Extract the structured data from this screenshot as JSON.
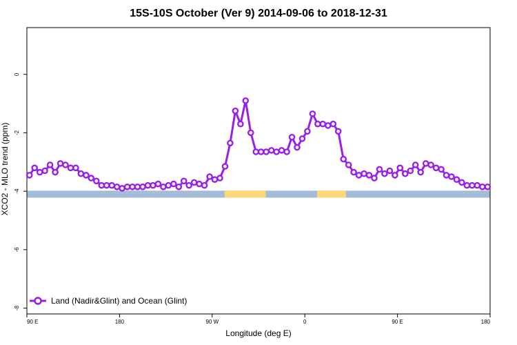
{
  "chart_data": {
    "type": "line",
    "title": "15S-10S October (Ver 9)   2014-09-06 to 2018-12-31",
    "xlabel": "Longitude (deg E)",
    "ylabel": "XCO2 - MLO trend (ppm)",
    "x_ticks": [
      {
        "value": 90,
        "label": "90 E"
      },
      {
        "value": 180,
        "label": "180"
      },
      {
        "value": 270,
        "label": "90 W"
      },
      {
        "value": 360,
        "label": "0"
      },
      {
        "value": 450,
        "label": "90 E"
      },
      {
        "value": 540,
        "label": "180"
      }
    ],
    "y_ticks": [
      0,
      -2,
      -4,
      -6,
      -8
    ],
    "xlim": [
      90,
      540
    ],
    "ylim": [
      -8.2,
      1.6
    ],
    "grid": false,
    "legend_position": "bottom-left",
    "series": [
      {
        "name": "Land (Nadir&Glint) and Ocean (Glint)",
        "color": "#9a1ee6",
        "x": [
          92.5,
          97.5,
          102.5,
          107.5,
          112.5,
          117.5,
          122.5,
          127.5,
          132.5,
          137.5,
          142.5,
          147.5,
          152.5,
          157.5,
          162.5,
          167.5,
          172.5,
          177.5,
          182.5,
          187.5,
          192.5,
          197.5,
          202.5,
          207.5,
          212.5,
          217.5,
          222.5,
          227.5,
          232.5,
          237.5,
          242.5,
          247.5,
          252.5,
          257.5,
          262.5,
          267.5,
          272.5,
          277.5,
          282.5,
          287.5,
          292.5,
          297.5,
          302.5,
          307.5,
          312.5,
          317.5,
          322.5,
          327.5,
          332.5,
          337.5,
          342.5,
          347.5,
          352.5,
          357.5,
          362.5,
          367.5,
          372.5,
          377.5,
          382.5,
          387.5,
          392.5,
          397.5,
          402.5,
          407.5,
          412.5,
          417.5,
          422.5,
          427.5,
          432.5,
          437.5,
          442.5,
          447.5,
          452.5,
          457.5,
          462.5,
          467.5,
          472.5,
          477.5,
          482.5,
          487.5,
          492.5,
          497.5,
          502.5,
          507.5,
          512.5,
          517.5,
          522.5,
          527.5,
          532.5,
          537.5
        ],
        "y": [
          -3.45,
          -3.2,
          -3.35,
          -3.3,
          -3.1,
          -3.35,
          -3.05,
          -3.1,
          -3.2,
          -3.2,
          -3.4,
          -3.45,
          -3.55,
          -3.65,
          -3.8,
          -3.8,
          -3.8,
          -3.85,
          -3.9,
          -3.85,
          -3.85,
          -3.85,
          -3.85,
          -3.8,
          -3.8,
          -3.75,
          -3.85,
          -3.8,
          -3.75,
          -3.85,
          -3.65,
          -3.8,
          -3.7,
          -3.75,
          -3.8,
          -3.5,
          -3.6,
          -3.55,
          -3.15,
          -2.35,
          -1.25,
          -1.7,
          -0.9,
          -2.0,
          -2.65,
          -2.65,
          -2.65,
          -2.6,
          -2.65,
          -2.6,
          -2.65,
          -2.15,
          -2.5,
          -2.2,
          -1.95,
          -1.35,
          -1.7,
          -1.7,
          -1.75,
          -1.7,
          -1.95,
          -2.9,
          -3.1,
          -3.35,
          -3.45,
          -3.4,
          -3.45,
          -3.55,
          -3.25,
          -3.4,
          -3.3,
          -3.45,
          -3.2,
          -3.4,
          -3.3,
          -3.1,
          -3.35,
          -3.05,
          -3.1,
          -3.2,
          -3.25,
          -3.45,
          -3.5,
          -3.6,
          -3.7,
          -3.8,
          -3.8,
          -3.8,
          -3.85,
          -3.85
        ]
      }
    ],
    "surface_band": {
      "y_top": -3.98,
      "y_bottom": -4.22,
      "ocean_color": "#a5bcd8",
      "land_color": "#ffd876",
      "land_ranges": [
        [
          282,
          322
        ],
        [
          372,
          400
        ]
      ]
    }
  }
}
